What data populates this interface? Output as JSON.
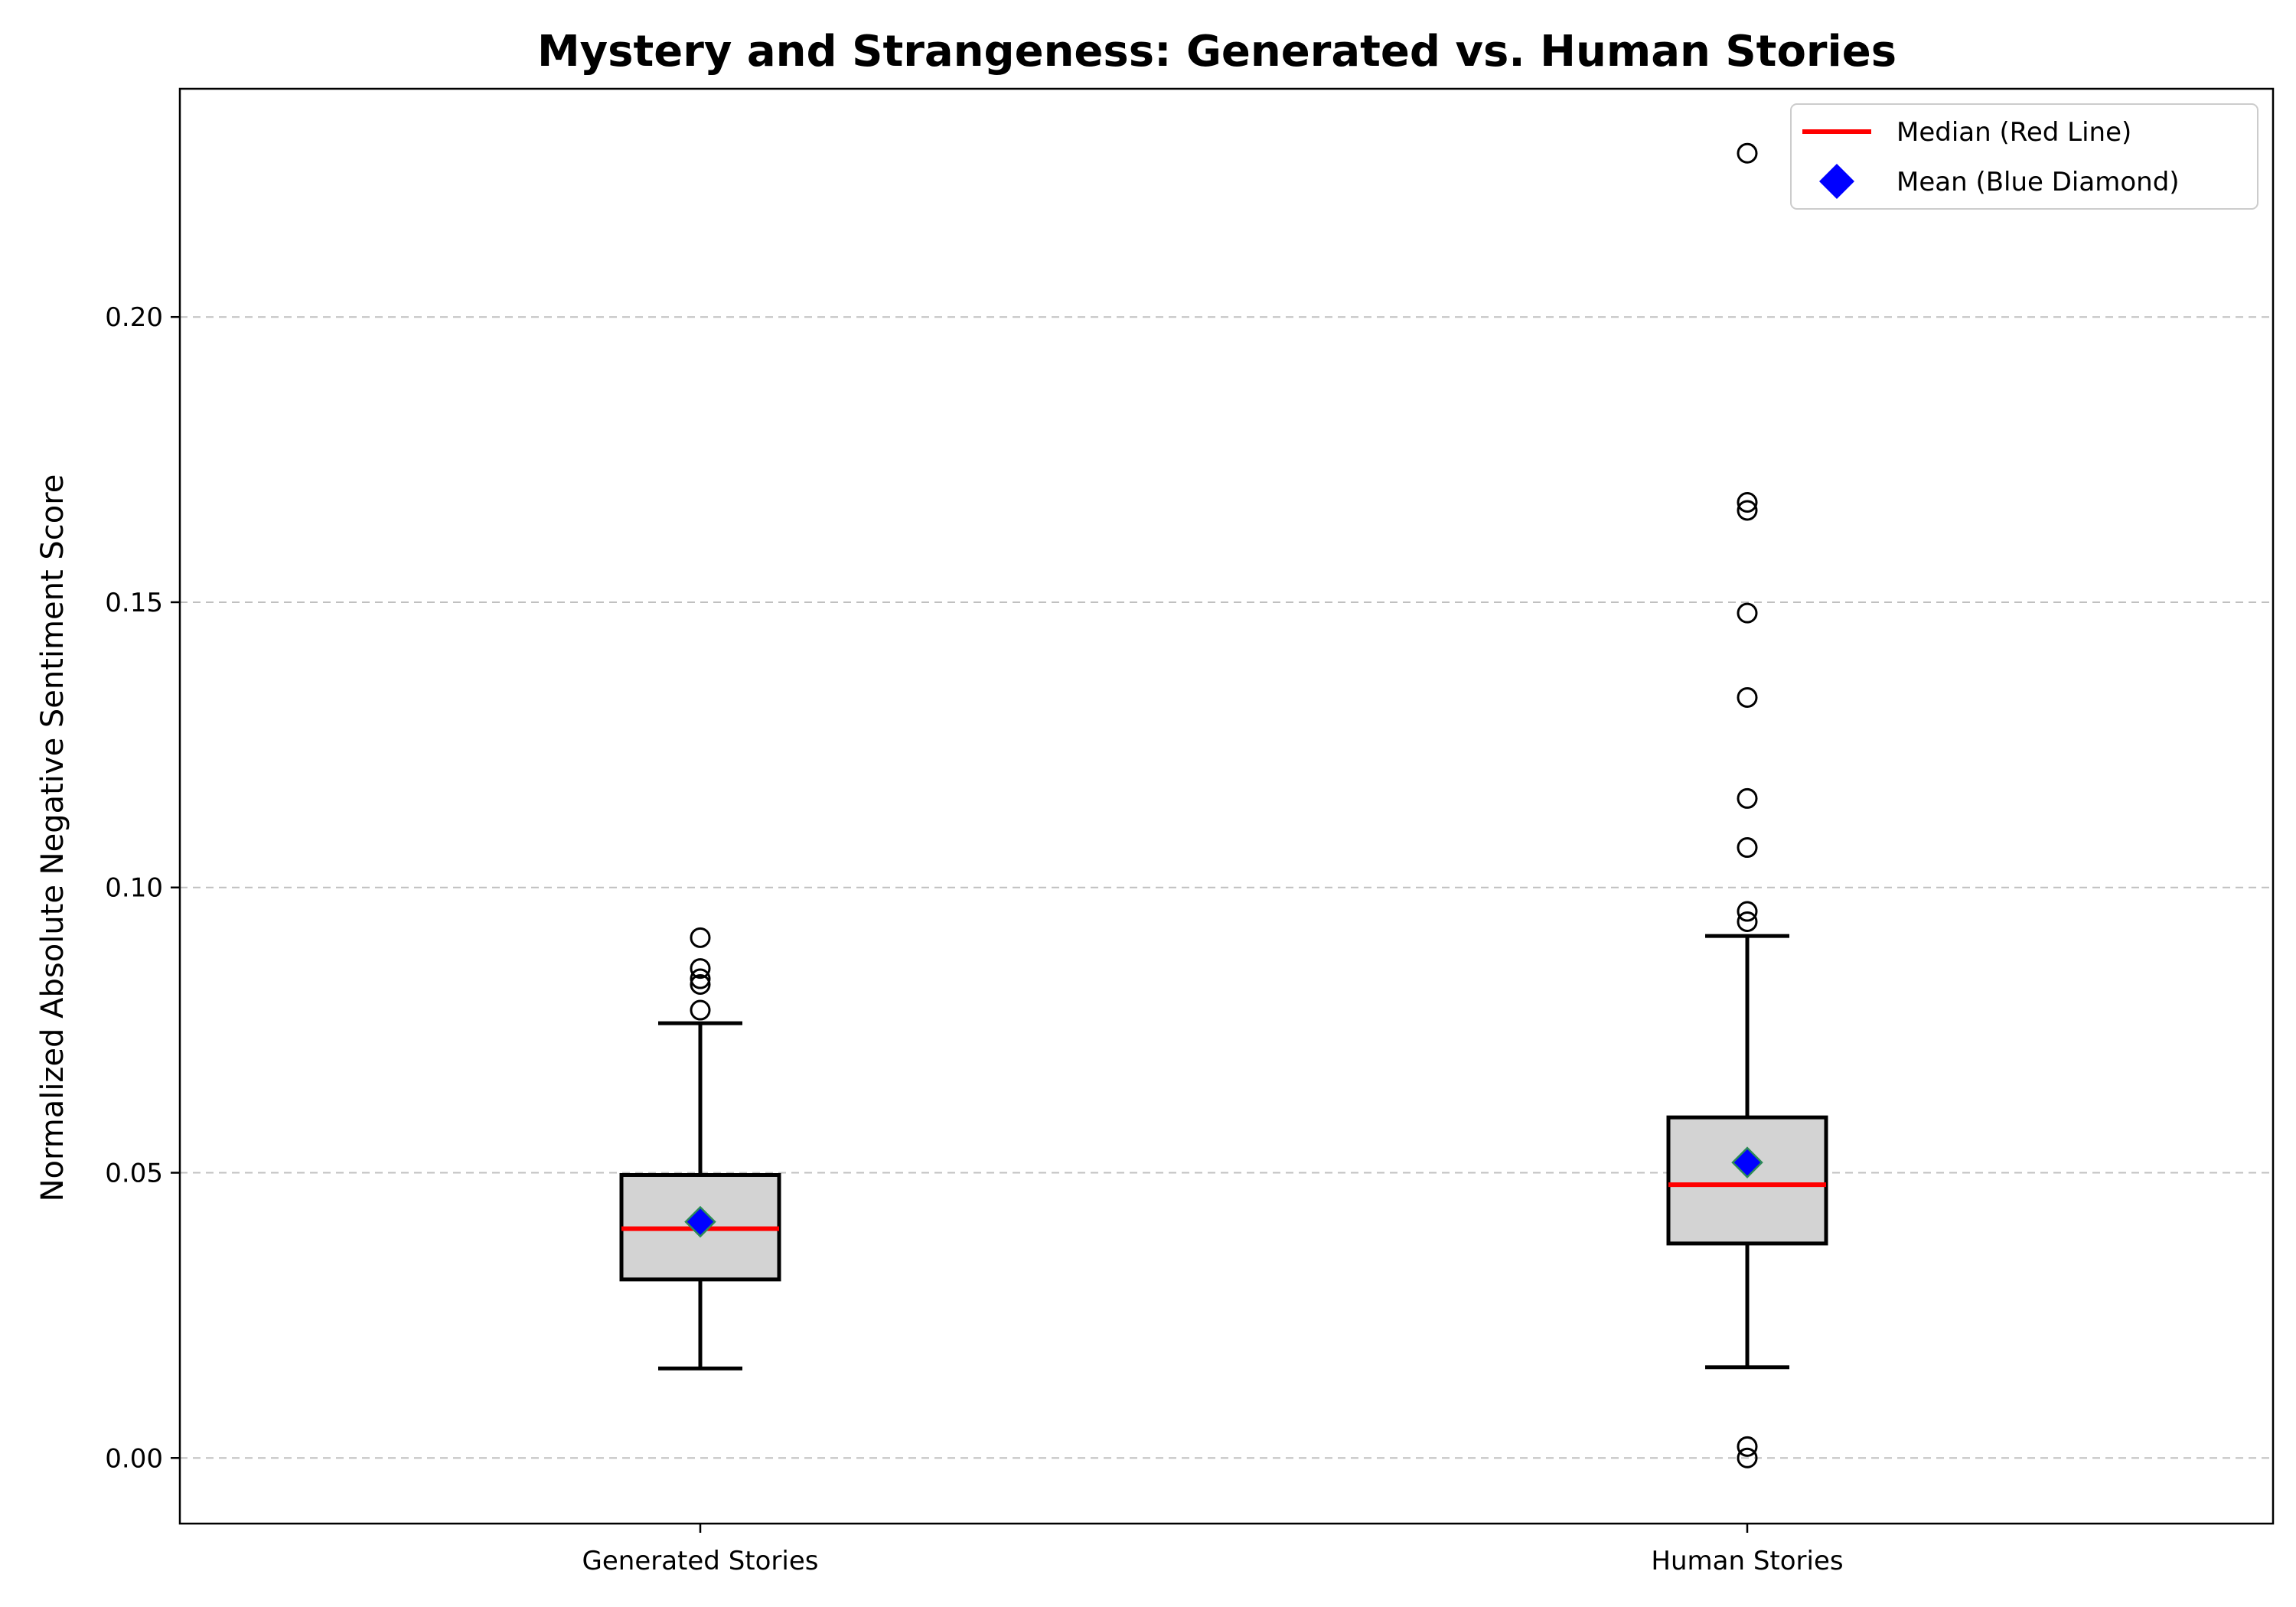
{
  "chart_data": {
    "type": "box",
    "title": "Mystery and Strangeness: Generated vs. Human Stories",
    "xlabel": "",
    "ylabel": "Normalized Absolute Negative Sentiment Score",
    "ylim": [
      -0.0115,
      0.24
    ],
    "yticks": [
      0.0,
      0.05,
      0.1,
      0.15,
      0.2
    ],
    "ytick_labels": [
      "0.00",
      "0.05",
      "0.10",
      "0.15",
      "0.20"
    ],
    "grid": "y-dashed",
    "legend_position": "top-right",
    "legend": [
      {
        "label": "Median (Red Line)",
        "marker": "line",
        "color": "#ff0000"
      },
      {
        "label": "Mean (Blue Diamond)",
        "marker": "diamond",
        "color": "#0000ff"
      }
    ],
    "colors": {
      "box_fill": "#d3d3d3",
      "median": "#ff0000",
      "mean": "#0000ff",
      "mean_edge": "#2e8b57",
      "grid": "#c0c0c0"
    },
    "categories": [
      "Generated Stories",
      "Human Stories"
    ],
    "boxes": [
      {
        "name": "Generated Stories",
        "whisker_low": 0.0157,
        "q1": 0.0313,
        "median": 0.0402,
        "q3": 0.0496,
        "whisker_high": 0.0762,
        "mean": 0.0414,
        "outliers": [
          0.0785,
          0.083,
          0.084,
          0.0858,
          0.0912
        ]
      },
      {
        "name": "Human Stories",
        "whisker_low": 0.0159,
        "q1": 0.0376,
        "median": 0.0479,
        "q3": 0.0597,
        "whisker_high": 0.0915,
        "mean": 0.0518,
        "outliers": [
          0.0,
          0.002,
          0.094,
          0.0958,
          0.107,
          0.1156,
          0.1333,
          0.1481,
          0.1661,
          0.1675,
          0.2287
        ]
      }
    ]
  }
}
